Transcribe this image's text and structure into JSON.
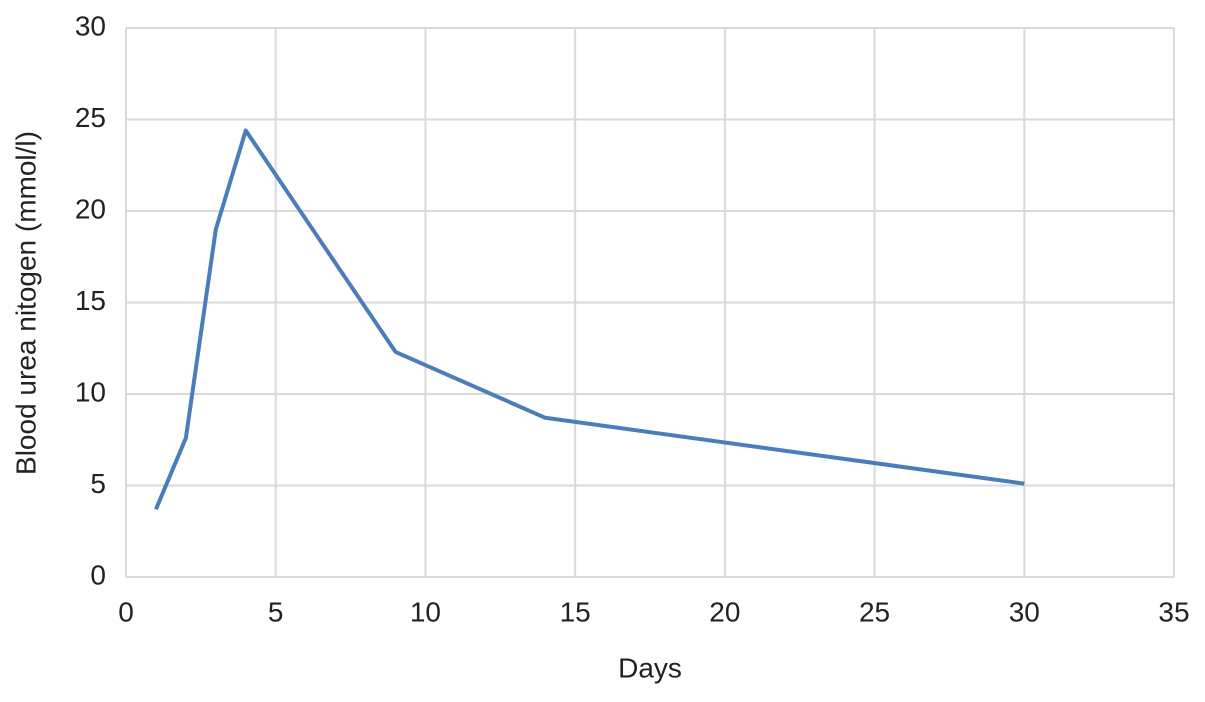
{
  "chart_data": {
    "type": "line",
    "x_label": "Days",
    "y_label": "Blood urea nitogen (mmol/l)",
    "x": [
      1,
      2,
      3,
      4,
      9,
      14,
      30
    ],
    "values": [
      3.7,
      7.6,
      19,
      24.4,
      12.3,
      8.7,
      5.1
    ],
    "color": "#4a7ebb",
    "xlim": [
      0,
      35
    ],
    "xticks": [
      0,
      5,
      10,
      15,
      20,
      25,
      30,
      35
    ],
    "ylim": [
      0,
      30
    ],
    "yticks": [
      0,
      5,
      10,
      15,
      20,
      25,
      30
    ],
    "grid": true
  }
}
